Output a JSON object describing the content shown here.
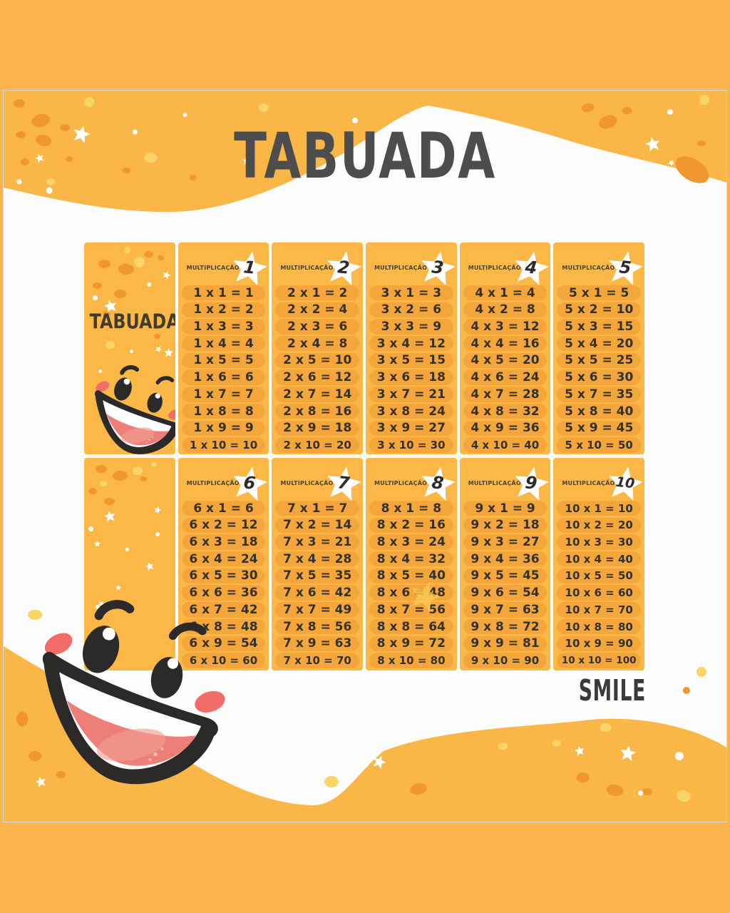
{
  "title": "TABUADA",
  "brand": "SMILE",
  "intro": {
    "label": "TABUADA"
  },
  "colors": {
    "background_orange": "#FBB44E",
    "card_white": "#FCFCFB",
    "panel_orange": "#FCB847",
    "pill_orange": "#F5A63A",
    "deco_dark_orange": "#F0982F",
    "deco_yellow": "#FBD468",
    "accent_red": "#F26D68",
    "text_dark": "#34302A",
    "title_gray": "#4D4D4D"
  },
  "tables": [
    {
      "star": "1",
      "label": "MULTIPLICAÇÃO",
      "rows": [
        "1 x 1 = 1",
        "1 x 2 = 2",
        "1 x 3 = 3",
        "1 x 4 = 4",
        "1 x 5 = 5",
        "1 x 6 = 6",
        "1 x 7 = 7",
        "1 x 8 = 8",
        "1 x 9 = 9",
        "1 x 10 = 10"
      ]
    },
    {
      "star": "2",
      "label": "MULTIPLICAÇÃO",
      "rows": [
        "2 x 1 = 2",
        "2 x 2 = 4",
        "2 x 3 = 6",
        "2 x 4 = 8",
        "2 x 5 = 10",
        "2 x 6 = 12",
        "2 x 7 = 14",
        "2 x 8 = 16",
        "2 x 9 = 18",
        "2 x 10 = 20"
      ]
    },
    {
      "star": "3",
      "label": "MULTIPLICAÇÃO",
      "rows": [
        "3 x 1 = 3",
        "3 x 2 = 6",
        "3 x 3 = 9",
        "3 x 4 = 12",
        "3 x 5 = 15",
        "3 x 6 = 18",
        "3 x 7 = 21",
        "3 x 8 = 24",
        "3 x 9 = 27",
        "3 x 10 = 30"
      ]
    },
    {
      "star": "4",
      "label": "MULTIPLICAÇÃO",
      "rows": [
        "4 x 1 = 4",
        "4 x 2 = 8",
        "4 x 3 = 12",
        "4 x 4 = 16",
        "4 x 5 = 20",
        "4 x 6 = 24",
        "4 x 7 = 28",
        "4 x 8 = 32",
        "4 x 9 = 36",
        "4 x 10 = 40"
      ]
    },
    {
      "star": "5",
      "label": "MULTIPLICAÇÃO",
      "rows": [
        "5 x 1 = 5",
        "5 x 2 = 10",
        "5 x 3 = 15",
        "5 x 4 = 20",
        "5 x 5 = 25",
        "5 x 6 = 30",
        "5 x 7 = 35",
        "5 x 8 = 40",
        "5 x 9 = 45",
        "5 x 10 = 50"
      ]
    },
    {
      "star": "6",
      "label": "MULTIPLICAÇÃO",
      "rows": [
        "6 x 1 = 6",
        "6 x 2 = 12",
        "6 x 3 = 18",
        "6 x 4 = 24",
        "6 x 5 = 30",
        "6 x 6 = 36",
        "6 x 7 = 42",
        "6 x 8 = 48",
        "6 x 9 = 54",
        "6 x 10 = 60"
      ]
    },
    {
      "star": "7",
      "label": "MULTIPLICAÇÃO",
      "rows": [
        "7 x 1 = 7",
        "7 x 2 = 14",
        "7 x 3 = 21",
        "7 x 4 = 28",
        "7 x 5 = 35",
        "7 x 6 = 42",
        "7 x 7 = 49",
        "7 x 8 = 56",
        "7 x 9 = 63",
        "7 x 10 = 70"
      ]
    },
    {
      "star": "8",
      "label": "MULTIPLICAÇÃO",
      "rows": [
        "8 x 1 = 8",
        "8 x 2 = 16",
        "8 x 3 = 24",
        "8 x 4 = 32",
        "8 x 5 = 40",
        "8 x 6 = 48",
        "8 x 7 = 56",
        "8 x 8 = 64",
        "8 x 9 = 72",
        "8 x 10 = 80"
      ]
    },
    {
      "star": "9",
      "label": "MULTIPLICAÇÃO",
      "rows": [
        "9 x 1 = 9",
        "9 x 2 = 18",
        "9 x 3 = 27",
        "9 x 4 = 36",
        "9 x 5 = 45",
        "9 x 6 = 54",
        "9 x 7 = 63",
        "9 x 8 = 72",
        "9 x 9 = 81",
        "9 x 10 = 90"
      ]
    },
    {
      "star": "10",
      "label": "MULTIPLICAÇÃO",
      "rows": [
        "10 x 1 = 10",
        "10 x 2 = 20",
        "10 x 3 = 30",
        "10 x 4 = 40",
        "10 x 5 = 50",
        "10 x 6 = 60",
        "10 x 7 = 70",
        "10 x 8 = 80",
        "10 x 9 = 90",
        "10 x 10 = 100"
      ]
    }
  ]
}
